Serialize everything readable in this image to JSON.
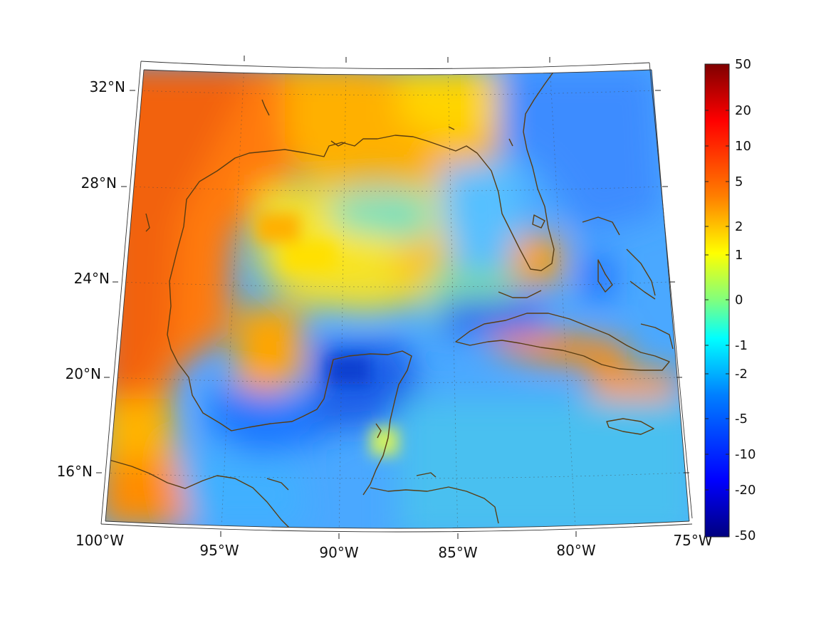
{
  "map": {
    "lat_labels": [
      "32°N",
      "28°N",
      "24°N",
      "20°N",
      "16°N"
    ],
    "lon_labels": [
      "100°W",
      "95°W",
      "90°W",
      "85°W",
      "80°W",
      "75°W"
    ],
    "lat_values": [
      32,
      28,
      24,
      20,
      16
    ],
    "lon_values": [
      -100,
      -95,
      -90,
      -85,
      -80,
      -75
    ],
    "extent": {
      "lon": [
        -100,
        -75
      ],
      "lat": [
        14,
        33
      ]
    },
    "coastline_color": "#5a3d12",
    "grid": "dotted"
  },
  "colorbar": {
    "tick_labels": [
      "50",
      "20",
      "10",
      "5",
      "2",
      "1",
      "0",
      "-1",
      "-2",
      "-5",
      "-10",
      "-20",
      "-50"
    ],
    "range": [
      -50,
      50
    ],
    "colormap": "jet",
    "colors": [
      "#00007f",
      "#0000ff",
      "#007fff",
      "#00ffff",
      "#7fff7f",
      "#ffff00",
      "#ff7f00",
      "#ff0000",
      "#7f0000"
    ]
  }
}
